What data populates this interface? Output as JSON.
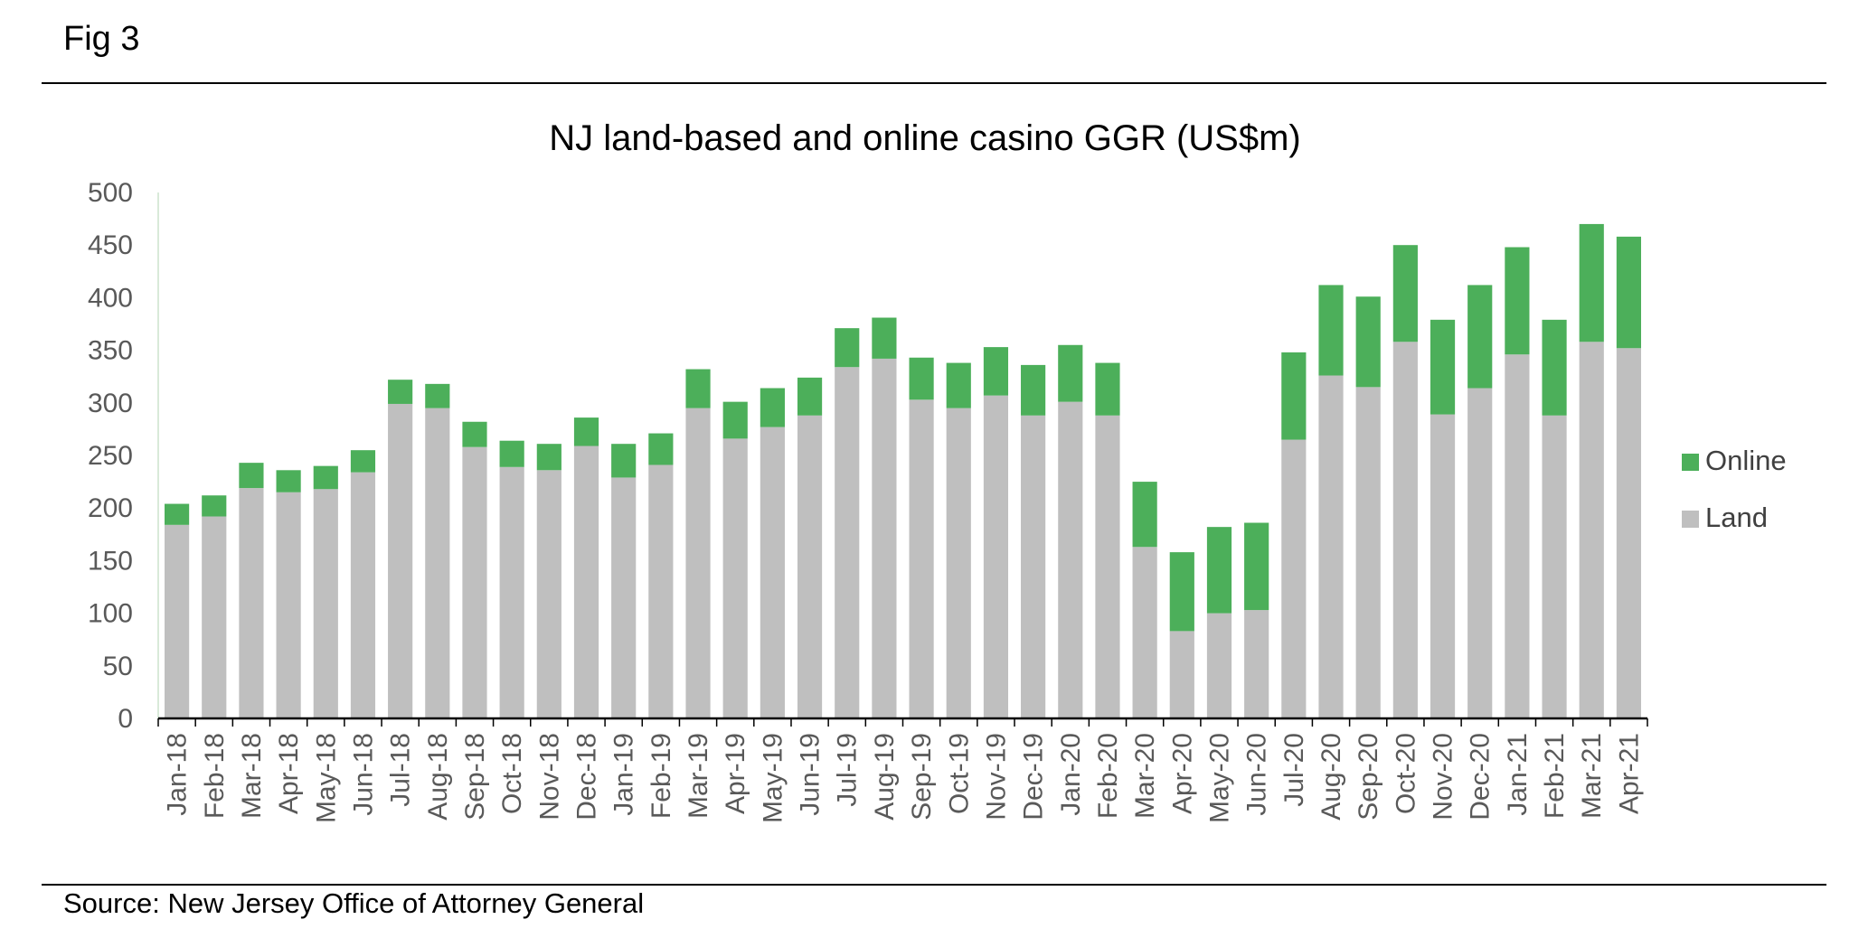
{
  "figure_label": "Fig 3",
  "source": "Source: New Jersey Office of Attorney General",
  "chart_data": {
    "type": "bar",
    "stacked": true,
    "title": "NJ land-based and online casino GGR (US$m)",
    "xlabel": "",
    "ylabel": "",
    "ylim": [
      0,
      500
    ],
    "yticks": [
      0,
      50,
      100,
      150,
      200,
      250,
      300,
      350,
      400,
      450,
      500
    ],
    "grid": false,
    "legend_position": "right",
    "categories": [
      "Jan-18",
      "Feb-18",
      "Mar-18",
      "Apr-18",
      "May-18",
      "Jun-18",
      "Jul-18",
      "Aug-18",
      "Sep-18",
      "Oct-18",
      "Nov-18",
      "Dec-18",
      "Jan-19",
      "Feb-19",
      "Mar-19",
      "Apr-19",
      "May-19",
      "Jun-19",
      "Jul-19",
      "Aug-19",
      "Sep-19",
      "Oct-19",
      "Nov-19",
      "Dec-19",
      "Jan-20",
      "Feb-20",
      "Mar-20",
      "Apr-20",
      "May-20",
      "Jun-20",
      "Jul-20",
      "Aug-20",
      "Sep-20",
      "Oct-20",
      "Nov-20",
      "Dec-20",
      "Jan-21",
      "Feb-21",
      "Mar-21",
      "Apr-21"
    ],
    "series": [
      {
        "name": "Land",
        "color": "#bfbfbf",
        "values": [
          184,
          192,
          219,
          215,
          218,
          234,
          299,
          295,
          258,
          239,
          236,
          259,
          229,
          241,
          295,
          266,
          277,
          288,
          334,
          342,
          303,
          295,
          307,
          288,
          301,
          288,
          163,
          83,
          100,
          103,
          265,
          326,
          315,
          358,
          289,
          314,
          346,
          288,
          358,
          352
        ]
      },
      {
        "name": "Online",
        "color": "#4caf5a",
        "values": [
          20,
          20,
          24,
          21,
          22,
          21,
          23,
          23,
          24,
          25,
          25,
          27,
          32,
          30,
          37,
          35,
          37,
          36,
          37,
          39,
          40,
          43,
          46,
          48,
          54,
          50,
          62,
          75,
          82,
          83,
          83,
          86,
          86,
          92,
          90,
          98,
          102,
          91,
          112,
          106
        ]
      }
    ],
    "legend_order": [
      "Online",
      "Land"
    ]
  }
}
